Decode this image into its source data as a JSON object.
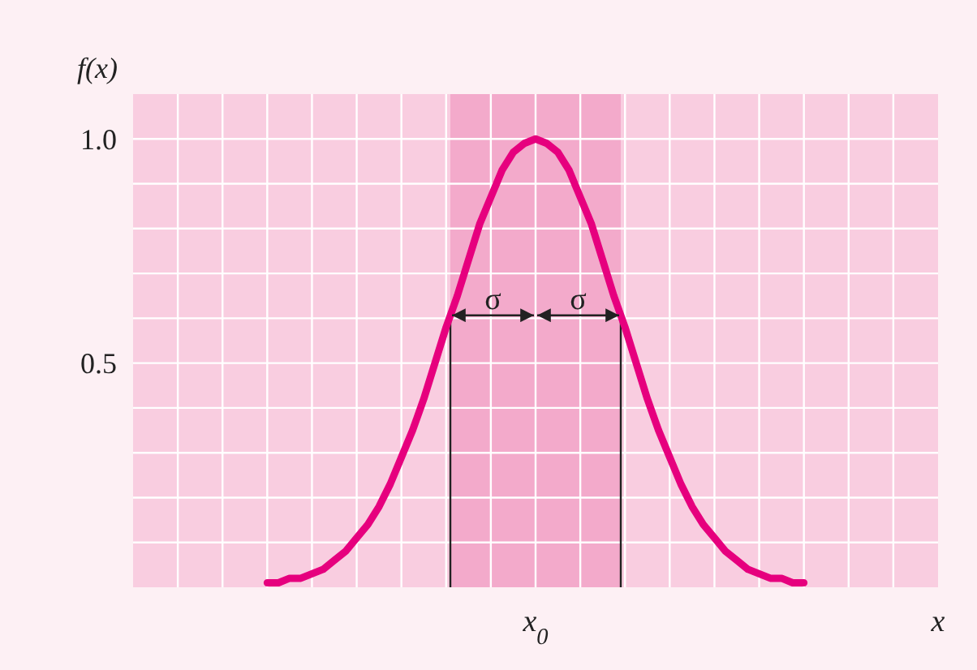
{
  "chart_data": {
    "type": "line",
    "xlabel": "x",
    "ylabel": "f(x)",
    "ylim": [
      0,
      1.1
    ],
    "categories": [
      null,
      null,
      null,
      null,
      null,
      null,
      null,
      null,
      null,
      null,
      null,
      null,
      null,
      null,
      null,
      null,
      null,
      null,
      null,
      null,
      null,
      null,
      null,
      null,
      "x$_{0}$",
      null,
      null,
      null,
      null,
      null,
      null,
      null,
      null,
      null,
      null,
      null,
      null,
      null,
      null,
      null,
      null,
      null,
      null,
      null,
      null,
      null,
      null,
      null,
      null
    ],
    "yticks": [
      {
        "value": 0.1,
        "label": null
      },
      {
        "value": 0.2,
        "label": null
      },
      {
        "value": 0.3,
        "label": null
      },
      {
        "value": 0.4,
        "label": null
      },
      {
        "value": 0.5,
        "label": "0.5"
      },
      {
        "value": 0.6,
        "label": null
      },
      {
        "value": 0.7,
        "label": null
      },
      {
        "value": 0.8,
        "label": null
      },
      {
        "value": 0.9,
        "label": null
      },
      {
        "value": 1.0,
        "label": "1.0"
      }
    ],
    "grid": true,
    "series": [
      {
        "color": "#e6007e",
        "values": [
          0.01,
          0.01,
          0.02,
          0.02,
          0.03,
          0.04,
          0.06,
          0.08,
          0.11,
          0.14,
          0.18,
          0.23,
          0.29,
          0.35,
          0.42,
          0.5,
          0.58,
          0.65,
          0.73,
          0.81,
          0.87,
          0.93,
          0.97,
          0.99,
          1,
          0.99,
          0.97,
          0.93,
          0.87,
          0.81,
          0.73,
          0.65,
          0.58,
          0.5,
          0.42,
          0.35,
          0.29,
          0.23,
          0.18,
          0.14,
          0.11,
          0.08,
          0.06,
          0.04,
          0.03,
          0.02,
          0.02,
          0.01,
          0.01
        ]
      }
    ],
    "annotations": [
      "σ",
      "σ"
    ]
  }
}
